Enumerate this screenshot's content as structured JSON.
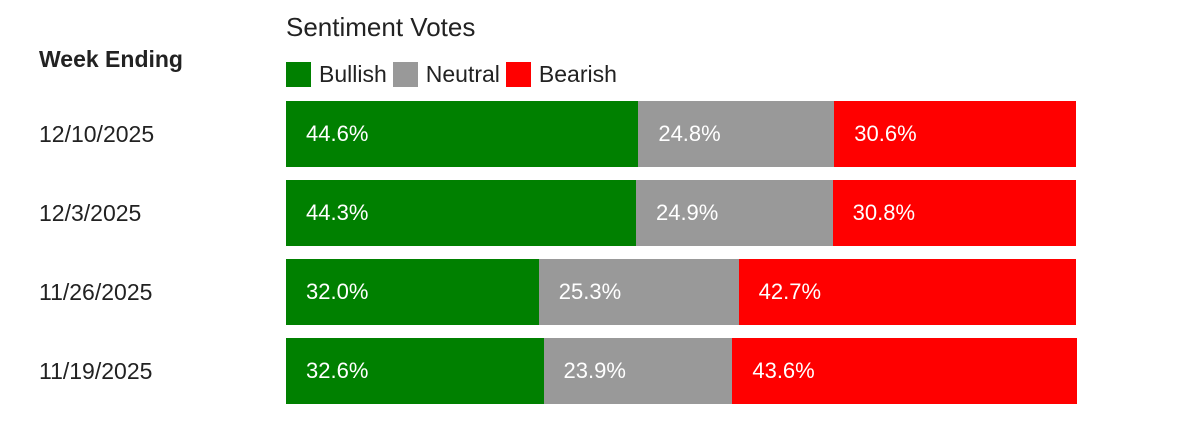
{
  "chart_data": {
    "type": "bar",
    "orientation": "horizontal",
    "stacked": true,
    "title": "Sentiment Votes",
    "ylabel": "Week Ending",
    "categories": [
      "12/10/2025",
      "12/3/2025",
      "11/26/2025",
      "11/19/2025"
    ],
    "series": [
      {
        "name": "Bullish",
        "color": "#008000",
        "values": [
          44.6,
          44.3,
          32.0,
          32.6
        ],
        "labels": [
          "44.6%",
          "44.3%",
          "32.0%",
          "32.6%"
        ]
      },
      {
        "name": "Neutral",
        "color": "#999999",
        "values": [
          24.8,
          24.9,
          25.3,
          23.9
        ],
        "labels": [
          "24.8%",
          "24.9%",
          "25.3%",
          "23.9%"
        ]
      },
      {
        "name": "Bearish",
        "color": "#ff0000",
        "values": [
          30.6,
          30.8,
          42.7,
          43.6
        ],
        "labels": [
          "30.6%",
          "30.8%",
          "42.7%",
          "43.6%"
        ]
      }
    ],
    "xlim": [
      0,
      100
    ],
    "legend_position": "top-left"
  }
}
